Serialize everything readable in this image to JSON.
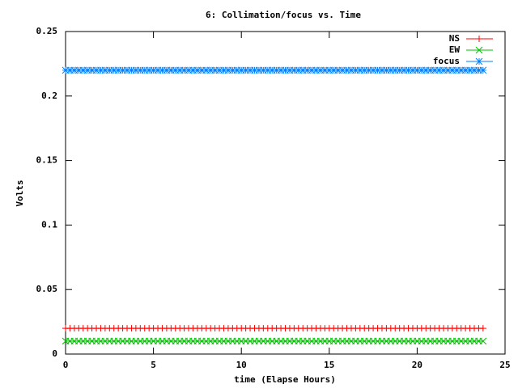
{
  "chart_data": {
    "type": "linespoints",
    "title": "6: Collimation/focus vs. Time",
    "x_label": "time (Elapse Hours)",
    "y_label": "Volts",
    "xlim": [
      0,
      25
    ],
    "ylim": [
      0,
      0.25
    ],
    "xticks": [
      0,
      5,
      10,
      15,
      20,
      25
    ],
    "yticks": [
      0,
      0.05,
      0.1,
      0.15,
      0.2,
      0.25
    ],
    "legend": "top-right",
    "x": [
      0,
      0.25,
      0.5,
      0.75,
      1,
      1.25,
      1.5,
      1.75,
      2,
      2.25,
      2.5,
      2.75,
      3,
      3.25,
      3.5,
      3.75,
      4,
      4.25,
      4.5,
      4.75,
      5,
      5.25,
      5.5,
      5.75,
      6,
      6.25,
      6.5,
      6.75,
      7,
      7.25,
      7.5,
      7.75,
      8,
      8.25,
      8.5,
      8.75,
      9,
      9.25,
      9.5,
      9.75,
      10,
      10.25,
      10.5,
      10.75,
      11,
      11.25,
      11.5,
      11.75,
      12,
      12.25,
      12.5,
      12.75,
      13,
      13.25,
      13.5,
      13.75,
      14,
      14.25,
      14.5,
      14.75,
      15,
      15.25,
      15.5,
      15.75,
      16,
      16.25,
      16.5,
      16.75,
      17,
      17.25,
      17.5,
      17.75,
      18,
      18.25,
      18.5,
      18.75,
      19,
      19.25,
      19.5,
      19.75,
      20,
      20.25,
      20.5,
      20.75,
      21,
      21.25,
      21.5,
      21.75,
      22,
      22.25,
      22.5,
      22.75,
      23,
      23.25,
      23.5,
      23.75
    ],
    "series": [
      {
        "name": "NS",
        "color": "#ff0000",
        "marker": "plus",
        "values": [
          0.02,
          0.02,
          0.02,
          0.02,
          0.02,
          0.02,
          0.02,
          0.02,
          0.02,
          0.02,
          0.02,
          0.02,
          0.02,
          0.02,
          0.02,
          0.02,
          0.02,
          0.02,
          0.02,
          0.02,
          0.02,
          0.02,
          0.02,
          0.02,
          0.02,
          0.02,
          0.02,
          0.02,
          0.02,
          0.02,
          0.02,
          0.02,
          0.02,
          0.02,
          0.02,
          0.02,
          0.02,
          0.02,
          0.02,
          0.02,
          0.02,
          0.02,
          0.02,
          0.02,
          0.02,
          0.02,
          0.02,
          0.02,
          0.02,
          0.02,
          0.02,
          0.02,
          0.02,
          0.02,
          0.02,
          0.02,
          0.02,
          0.02,
          0.02,
          0.02,
          0.02,
          0.02,
          0.02,
          0.02,
          0.02,
          0.02,
          0.02,
          0.02,
          0.02,
          0.02,
          0.02,
          0.02,
          0.02,
          0.02,
          0.02,
          0.02,
          0.02,
          0.02,
          0.02,
          0.02,
          0.02,
          0.02,
          0.02,
          0.02,
          0.02,
          0.02,
          0.02,
          0.02,
          0.02,
          0.02,
          0.02,
          0.02,
          0.02,
          0.02,
          0.02,
          0.02
        ]
      },
      {
        "name": "EW",
        "color": "#00c000",
        "marker": "cross",
        "values": [
          0.01,
          0.01,
          0.01,
          0.01,
          0.01,
          0.01,
          0.01,
          0.01,
          0.01,
          0.01,
          0.01,
          0.01,
          0.01,
          0.01,
          0.01,
          0.01,
          0.01,
          0.01,
          0.01,
          0.01,
          0.01,
          0.01,
          0.01,
          0.01,
          0.01,
          0.01,
          0.01,
          0.01,
          0.01,
          0.01,
          0.01,
          0.01,
          0.01,
          0.01,
          0.01,
          0.01,
          0.01,
          0.01,
          0.01,
          0.01,
          0.01,
          0.01,
          0.01,
          0.01,
          0.01,
          0.01,
          0.01,
          0.01,
          0.01,
          0.01,
          0.01,
          0.01,
          0.01,
          0.01,
          0.01,
          0.01,
          0.01,
          0.01,
          0.01,
          0.01,
          0.01,
          0.01,
          0.01,
          0.01,
          0.01,
          0.01,
          0.01,
          0.01,
          0.01,
          0.01,
          0.01,
          0.01,
          0.01,
          0.01,
          0.01,
          0.01,
          0.01,
          0.01,
          0.01,
          0.01,
          0.01,
          0.01,
          0.01,
          0.01,
          0.01,
          0.01,
          0.01,
          0.01,
          0.01,
          0.01,
          0.01,
          0.01,
          0.01,
          0.01,
          0.01,
          0.01
        ]
      },
      {
        "name": "focus",
        "color": "#0080ff",
        "marker": "star",
        "values": [
          0.22,
          0.22,
          0.22,
          0.22,
          0.22,
          0.22,
          0.22,
          0.22,
          0.22,
          0.22,
          0.22,
          0.22,
          0.22,
          0.22,
          0.22,
          0.22,
          0.22,
          0.22,
          0.22,
          0.22,
          0.22,
          0.22,
          0.22,
          0.22,
          0.22,
          0.22,
          0.22,
          0.22,
          0.22,
          0.22,
          0.22,
          0.22,
          0.22,
          0.22,
          0.22,
          0.22,
          0.22,
          0.22,
          0.22,
          0.22,
          0.22,
          0.22,
          0.22,
          0.22,
          0.22,
          0.22,
          0.22,
          0.22,
          0.22,
          0.22,
          0.22,
          0.22,
          0.22,
          0.22,
          0.22,
          0.22,
          0.22,
          0.22,
          0.22,
          0.22,
          0.22,
          0.22,
          0.22,
          0.22,
          0.22,
          0.22,
          0.22,
          0.22,
          0.22,
          0.22,
          0.22,
          0.22,
          0.22,
          0.22,
          0.22,
          0.22,
          0.22,
          0.22,
          0.22,
          0.22,
          0.22,
          0.22,
          0.22,
          0.22,
          0.22,
          0.22,
          0.22,
          0.22,
          0.22,
          0.22,
          0.22,
          0.22,
          0.22,
          0.22,
          0.22,
          0.22
        ]
      }
    ]
  }
}
